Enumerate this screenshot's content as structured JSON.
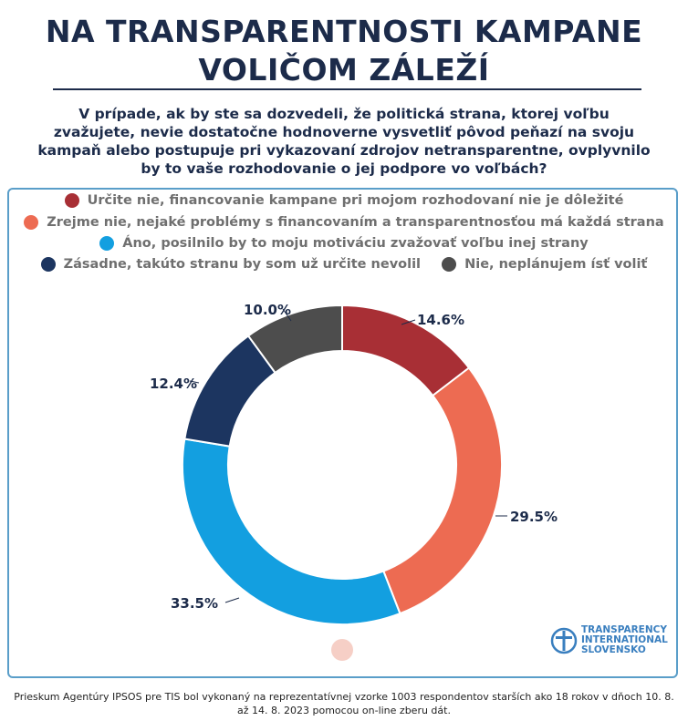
{
  "title": [
    "NA TRANSPARENTNOSTI KAMPANE",
    "VOLIČOM ZÁLEŽÍ"
  ],
  "question": "V prípade, ak by ste sa dozvedeli, že politická strana, ktorej voľbu zvažujete, nevie dostatočne hodnoverne vysvetliť pôvod peňazí na svoju kampaň alebo postupuje pri vykazovaní zdrojov netransparentne, ovplyvnilo by to vaše rozhodovanie o jej podpore vo voľbách?",
  "legend": [
    {
      "label": "Určite nie, financovanie kampane pri mojom rozhodovaní nie je dôležité",
      "color": "#a82f35"
    },
    {
      "label": "Zrejme nie, nejaké problémy s financovaním a transparentnosťou má každá strana",
      "color": "#ed6b52"
    },
    {
      "label": "Áno, posilnilo by to moju motiváciu zvažovať voľbu inej strany",
      "color": "#139fe0"
    },
    {
      "label": "Zásadne, takúto stranu by som už určite nevolil",
      "color": "#1c3560"
    },
    {
      "label": "Nie, neplánujem ísť voliť",
      "color": "#4d4d4d"
    }
  ],
  "chart_data": {
    "type": "pie",
    "variant": "donut",
    "categories": [
      "Určite nie, financovanie kampane pri mojom rozhodovaní nie je dôležité",
      "Zrejme nie, nejaké problémy s financovaním a transparentnosťou má každá strana",
      "Áno, posilnilo by to moju motiváciu zvažovať voľbu inej strany",
      "Zásadne, takúto stranu by som už určite nevolil",
      "Nie, neplánujem ísť voliť"
    ],
    "values": [
      14.6,
      29.5,
      33.5,
      12.4,
      10.0
    ],
    "labels": [
      "14.6%",
      "29.5%",
      "33.5%",
      "12.4%",
      "10.0%"
    ],
    "colors": [
      "#a82f35",
      "#ed6b52",
      "#139fe0",
      "#1c3560",
      "#4d4d4d"
    ]
  },
  "logo": {
    "lines": [
      "TRANSPARENCY",
      "INTERNATIONAL",
      "SLOVENSKO"
    ],
    "color": "#3a7fbf"
  },
  "footer": "Prieskum Agentúry IPSOS pre TIS bol vykonaný na reprezentatívnej vzorke 1003 respondentov starších ako 18 rokov v dňoch 10. 8. až 14. 8. 2023 pomocou on-line zberu dát."
}
